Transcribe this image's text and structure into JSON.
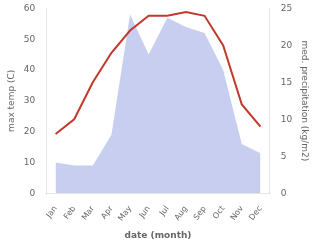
{
  "chart_data": {
    "type": "line",
    "xlabel": "date (month)",
    "ylabel": "max temp (C)",
    "y2label": "med. precipitation (kg/m2)",
    "categories": [
      "Jan",
      "Feb",
      "Mar",
      "Apr",
      "May",
      "Jun",
      "Jul",
      "Aug",
      "Sep",
      "Oct",
      "Nov",
      "Dec"
    ],
    "series": [
      {
        "type": "area",
        "color": "#aab4e8",
        "values": [
          10,
          9,
          9,
          19,
          58,
          45,
          57,
          54,
          52,
          40,
          16,
          13
        ]
      },
      {
        "type": "line",
        "color": "#c0392b",
        "axis": "y2",
        "values": [
          8,
          10,
          15,
          19,
          22,
          24,
          24,
          24.5,
          24,
          20,
          12,
          9
        ]
      }
    ],
    "ylim": [
      0,
      60
    ],
    "yticks": [
      0,
      10,
      20,
      30,
      40,
      50,
      60
    ],
    "y2lim": [
      0,
      25
    ],
    "y2ticks": [
      0,
      5,
      10,
      15,
      20,
      25
    ],
    "grid": false
  }
}
